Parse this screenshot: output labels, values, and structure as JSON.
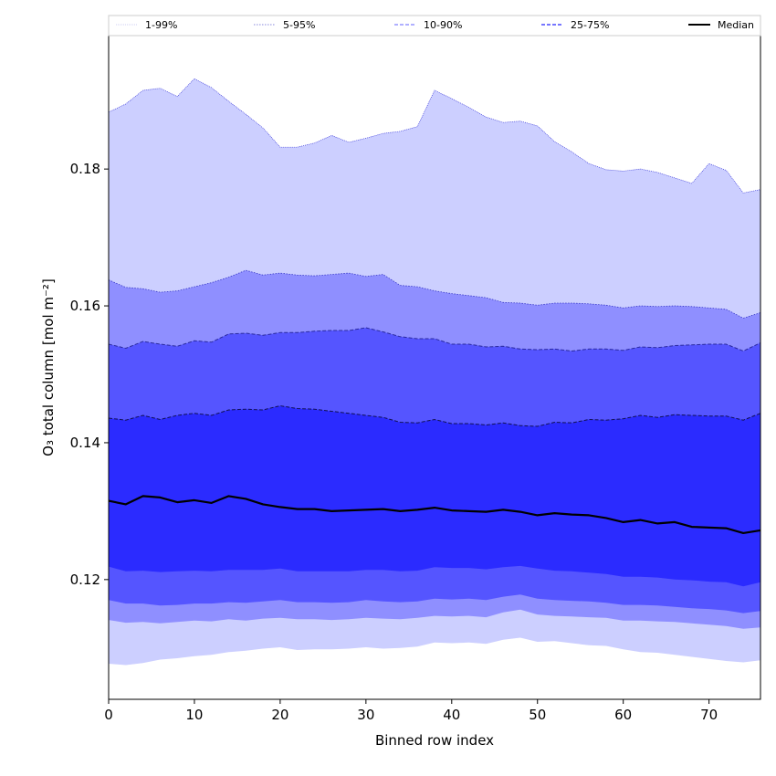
{
  "chart_data": {
    "type": "area",
    "xlabel": "Binned row index",
    "ylabel": "O₃ total column [mol m⁻²]",
    "xlim": [
      0,
      76
    ],
    "ylim": [
      0.1025,
      0.1995
    ],
    "xticks": [
      0,
      10,
      20,
      30,
      40,
      50,
      60,
      70
    ],
    "yticks": [
      0.12,
      0.14,
      0.16,
      0.18
    ],
    "ytick_labels": [
      "0.12",
      "0.14",
      "0.16",
      "0.18"
    ],
    "grid": false,
    "legend_position": "top",
    "legend": [
      {
        "label": "1-99%",
        "style": "dotted-thin"
      },
      {
        "label": "5-95%",
        "style": "dotted"
      },
      {
        "label": "10-90%",
        "style": "dashed-light"
      },
      {
        "label": "25-75%",
        "style": "dashed"
      },
      {
        "label": "Median",
        "style": "solid"
      }
    ],
    "colors": {
      "band_1_99": "#cccfff",
      "band_5_95": "#8f8fff",
      "band_10_90": "#5555ff",
      "band_25_75": "#2b2bff",
      "edge_1_99": "#3838d8",
      "edge_5_95": "#3838c8",
      "edge_10_90": "#2a2aa0",
      "edge_25_75": "#111155",
      "median": "#000000"
    },
    "x": [
      0,
      2,
      4,
      6,
      8,
      10,
      12,
      14,
      16,
      18,
      20,
      22,
      24,
      26,
      28,
      30,
      32,
      34,
      36,
      38,
      40,
      42,
      44,
      46,
      48,
      50,
      52,
      54,
      56,
      58,
      60,
      62,
      64,
      66,
      68,
      70,
      72,
      74,
      76
    ],
    "series": [
      {
        "name": "1-99% lower",
        "values": [
          0.1077,
          0.1075,
          0.1078,
          0.1083,
          0.1085,
          0.1088,
          0.109,
          0.1094,
          0.1096,
          0.1099,
          0.1101,
          0.1097,
          0.1098,
          0.1098,
          0.1099,
          0.1101,
          0.1099,
          0.11,
          0.1102,
          0.1108,
          0.1107,
          0.1108,
          0.1106,
          0.1112,
          0.1115,
          0.1109,
          0.111,
          0.1107,
          0.1104,
          0.1103,
          0.1098,
          0.1094,
          0.1093,
          0.109,
          0.1087,
          0.1084,
          0.1081,
          0.1079,
          0.1082
        ]
      },
      {
        "name": "5-95% lower",
        "values": [
          0.1141,
          0.1137,
          0.1138,
          0.1136,
          0.1138,
          0.114,
          0.1139,
          0.1142,
          0.114,
          0.1143,
          0.1144,
          0.1142,
          0.1142,
          0.1141,
          0.1142,
          0.1144,
          0.1143,
          0.1142,
          0.1144,
          0.1147,
          0.1146,
          0.1147,
          0.1145,
          0.1152,
          0.1156,
          0.1149,
          0.1147,
          0.1146,
          0.1145,
          0.1144,
          0.114,
          0.114,
          0.1139,
          0.1138,
          0.1136,
          0.1134,
          0.1132,
          0.1128,
          0.113
        ]
      },
      {
        "name": "10-90% lower",
        "values": [
          0.117,
          0.1165,
          0.1165,
          0.1162,
          0.1163,
          0.1165,
          0.1165,
          0.1167,
          0.1166,
          0.1168,
          0.117,
          0.1167,
          0.1167,
          0.1166,
          0.1167,
          0.117,
          0.1168,
          0.1167,
          0.1168,
          0.1172,
          0.1171,
          0.1172,
          0.117,
          0.1175,
          0.1178,
          0.1172,
          0.117,
          0.1169,
          0.1168,
          0.1166,
          0.1163,
          0.1163,
          0.1162,
          0.116,
          0.1158,
          0.1157,
          0.1155,
          0.1151,
          0.1154
        ]
      },
      {
        "name": "25-75% lower",
        "values": [
          0.1219,
          0.1212,
          0.1213,
          0.1211,
          0.1212,
          0.1213,
          0.1212,
          0.1214,
          0.1214,
          0.1214,
          0.1216,
          0.1212,
          0.1212,
          0.1212,
          0.1212,
          0.1214,
          0.1214,
          0.1212,
          0.1213,
          0.1218,
          0.1217,
          0.1217,
          0.1215,
          0.1218,
          0.122,
          0.1216,
          0.1213,
          0.1212,
          0.121,
          0.1208,
          0.1204,
          0.1204,
          0.1203,
          0.12,
          0.1199,
          0.1197,
          0.1196,
          0.119,
          0.1196
        ]
      },
      {
        "name": "Median",
        "values": [
          0.1315,
          0.131,
          0.1322,
          0.132,
          0.1313,
          0.1316,
          0.1312,
          0.1322,
          0.1318,
          0.131,
          0.1306,
          0.1303,
          0.1303,
          0.13,
          0.1301,
          0.1302,
          0.1303,
          0.13,
          0.1302,
          0.1305,
          0.1301,
          0.13,
          0.1299,
          0.1302,
          0.1299,
          0.1294,
          0.1297,
          0.1295,
          0.1294,
          0.129,
          0.1284,
          0.1287,
          0.1282,
          0.1284,
          0.1277,
          0.1276,
          0.1275,
          0.1268,
          0.1272
        ]
      },
      {
        "name": "25-75% upper",
        "values": [
          0.1436,
          0.1433,
          0.144,
          0.1434,
          0.144,
          0.1443,
          0.144,
          0.1448,
          0.1449,
          0.1448,
          0.1454,
          0.145,
          0.1449,
          0.1446,
          0.1443,
          0.144,
          0.1437,
          0.143,
          0.1429,
          0.1434,
          0.1428,
          0.1428,
          0.1426,
          0.1429,
          0.1425,
          0.1424,
          0.143,
          0.1429,
          0.1434,
          0.1433,
          0.1435,
          0.144,
          0.1437,
          0.1441,
          0.144,
          0.1439,
          0.1439,
          0.1433,
          0.1443
        ]
      },
      {
        "name": "10-90% upper",
        "values": [
          0.1544,
          0.1538,
          0.1548,
          0.1544,
          0.1541,
          0.1549,
          0.1547,
          0.1559,
          0.156,
          0.1557,
          0.1561,
          0.1561,
          0.1563,
          0.1564,
          0.1564,
          0.1568,
          0.1562,
          0.1555,
          0.1552,
          0.1552,
          0.1544,
          0.1544,
          0.154,
          0.1541,
          0.1537,
          0.1536,
          0.1537,
          0.1534,
          0.1537,
          0.1537,
          0.1535,
          0.154,
          0.1539,
          0.1542,
          0.1543,
          0.1544,
          0.1544,
          0.1534,
          0.1546
        ]
      },
      {
        "name": "5-95% upper",
        "values": [
          0.1638,
          0.1627,
          0.1625,
          0.162,
          0.1622,
          0.1628,
          0.1634,
          0.1642,
          0.1652,
          0.1645,
          0.1648,
          0.1645,
          0.1644,
          0.1646,
          0.1648,
          0.1643,
          0.1646,
          0.163,
          0.1628,
          0.1622,
          0.1618,
          0.1615,
          0.1612,
          0.1605,
          0.1604,
          0.1601,
          0.1604,
          0.1604,
          0.1603,
          0.1601,
          0.1597,
          0.16,
          0.1599,
          0.16,
          0.1599,
          0.1597,
          0.1595,
          0.1582,
          0.159
        ]
      },
      {
        "name": "1-99% upper",
        "values": [
          0.1883,
          0.1895,
          0.1915,
          0.1918,
          0.1906,
          0.1932,
          0.1919,
          0.1899,
          0.188,
          0.186,
          0.1832,
          0.1832,
          0.1838,
          0.1849,
          0.1839,
          0.1845,
          0.1852,
          0.1855,
          0.1862,
          0.1915,
          0.1903,
          0.189,
          0.1876,
          0.1868,
          0.187,
          0.1863,
          0.184,
          0.1825,
          0.1808,
          0.1799,
          0.1797,
          0.18,
          0.1795,
          0.1787,
          0.1779,
          0.1808,
          0.1798,
          0.1765,
          0.177
        ]
      }
    ]
  }
}
